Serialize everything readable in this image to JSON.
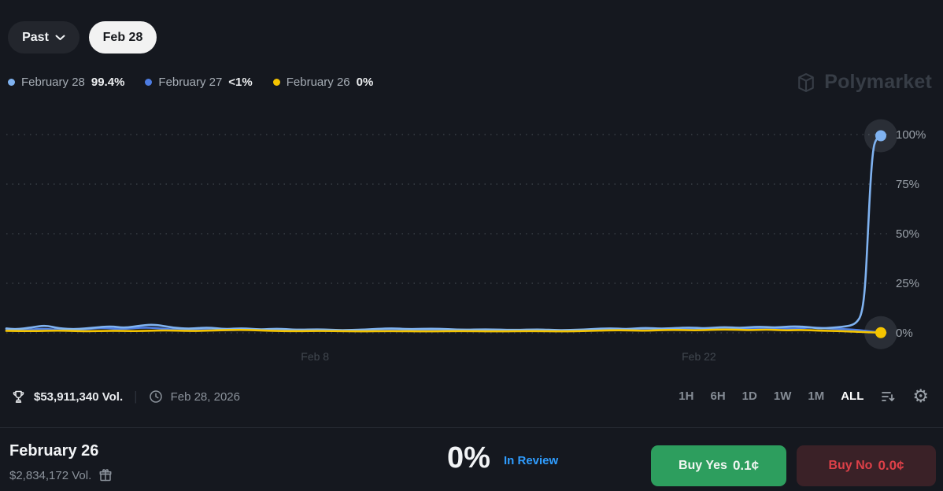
{
  "toolbar": {
    "past_label": "Past",
    "date_pill": "Feb 28"
  },
  "legend": [
    {
      "label": "February 28",
      "value": "99.4%",
      "color": "#7fb2f0"
    },
    {
      "label": "February 27",
      "value": "<1%",
      "color": "#4d7ce2"
    },
    {
      "label": "February 26",
      "value": "0%",
      "color": "#f5c400"
    }
  ],
  "watermark": {
    "text": "Polymarket"
  },
  "chart_data": {
    "type": "line",
    "title": "",
    "ylabel": "",
    "xlabel": "",
    "ylim": [
      0,
      100
    ],
    "grid": "dotted-horizontal",
    "legend_position": "top-left",
    "y_ticks": [
      "0%",
      "25%",
      "50%",
      "75%",
      "100%"
    ],
    "x_ticks": [
      {
        "label": "Feb 8",
        "x": 0.353
      },
      {
        "label": "Feb 22",
        "x": 0.792
      }
    ],
    "series": [
      {
        "name": "February 27",
        "color": "#4d7ce2",
        "end_dot": false,
        "final_value": "<1%",
        "points": [
          [
            0,
            1.6
          ],
          [
            0.02,
            1.2
          ],
          [
            0.04,
            2.2
          ],
          [
            0.06,
            1.4
          ],
          [
            0.09,
            1.8
          ],
          [
            0.11,
            2.6
          ],
          [
            0.13,
            1.8
          ],
          [
            0.16,
            2.8
          ],
          [
            0.18,
            2.0
          ],
          [
            0.2,
            1.4
          ],
          [
            0.22,
            2.0
          ],
          [
            0.25,
            1.2
          ],
          [
            0.28,
            1.8
          ],
          [
            0.31,
            1.3
          ],
          [
            0.34,
            1.6
          ],
          [
            0.37,
            1.1
          ],
          [
            0.4,
            1.4
          ],
          [
            0.43,
            1.8
          ],
          [
            0.46,
            1.2
          ],
          [
            0.5,
            1.5
          ],
          [
            0.54,
            1.1
          ],
          [
            0.58,
            1.4
          ],
          [
            0.62,
            1.0
          ],
          [
            0.66,
            1.3
          ],
          [
            0.7,
            1.8
          ],
          [
            0.73,
            1.4
          ],
          [
            0.76,
            2.2
          ],
          [
            0.79,
            1.6
          ],
          [
            0.82,
            2.4
          ],
          [
            0.85,
            1.8
          ],
          [
            0.88,
            2.6
          ],
          [
            0.9,
            2.0
          ],
          [
            0.92,
            2.8
          ],
          [
            0.94,
            2.2
          ],
          [
            0.96,
            1.8
          ],
          [
            0.975,
            1.4
          ],
          [
            0.99,
            0.6
          ],
          [
            1,
            0.2
          ]
        ]
      },
      {
        "name": "February 28",
        "color": "#7fb2f0",
        "end_dot": true,
        "final_value": "99.4%",
        "points": [
          [
            0,
            2.2
          ],
          [
            0.01,
            1.6
          ],
          [
            0.03,
            2.8
          ],
          [
            0.045,
            3.8
          ],
          [
            0.06,
            2.2
          ],
          [
            0.08,
            1.8
          ],
          [
            0.1,
            2.6
          ],
          [
            0.12,
            3.4
          ],
          [
            0.135,
            2.4
          ],
          [
            0.155,
            3.8
          ],
          [
            0.17,
            4.2
          ],
          [
            0.19,
            2.6
          ],
          [
            0.21,
            2.0
          ],
          [
            0.23,
            2.8
          ],
          [
            0.25,
            1.8
          ],
          [
            0.27,
            2.4
          ],
          [
            0.29,
            1.6
          ],
          [
            0.31,
            2.2
          ],
          [
            0.33,
            1.5
          ],
          [
            0.36,
            1.8
          ],
          [
            0.38,
            1.3
          ],
          [
            0.41,
            1.6
          ],
          [
            0.44,
            2.4
          ],
          [
            0.46,
            1.8
          ],
          [
            0.49,
            2.2
          ],
          [
            0.52,
            1.5
          ],
          [
            0.55,
            1.8
          ],
          [
            0.58,
            1.4
          ],
          [
            0.61,
            1.8
          ],
          [
            0.63,
            1.3
          ],
          [
            0.66,
            1.6
          ],
          [
            0.69,
            2.4
          ],
          [
            0.71,
            1.8
          ],
          [
            0.73,
            2.6
          ],
          [
            0.75,
            2.0
          ],
          [
            0.78,
            2.8
          ],
          [
            0.8,
            2.2
          ],
          [
            0.82,
            3.0
          ],
          [
            0.84,
            2.4
          ],
          [
            0.86,
            3.2
          ],
          [
            0.88,
            2.6
          ],
          [
            0.9,
            3.4
          ],
          [
            0.92,
            2.8
          ],
          [
            0.93,
            2.2
          ],
          [
            0.945,
            2.6
          ],
          [
            0.955,
            3.0
          ],
          [
            0.965,
            3.6
          ],
          [
            0.972,
            5.0
          ],
          [
            0.978,
            9
          ],
          [
            0.982,
            22
          ],
          [
            0.985,
            48
          ],
          [
            0.988,
            75
          ],
          [
            0.991,
            92
          ],
          [
            0.994,
            97.5
          ],
          [
            1,
            99.4
          ]
        ]
      },
      {
        "name": "February 26",
        "color": "#f5c400",
        "end_dot": true,
        "final_value": "0%",
        "points": [
          [
            0,
            1.0
          ],
          [
            0.03,
            0.8
          ],
          [
            0.06,
            1.2
          ],
          [
            0.09,
            0.7
          ],
          [
            0.12,
            1.1
          ],
          [
            0.15,
            0.8
          ],
          [
            0.18,
            1.3
          ],
          [
            0.21,
            0.9
          ],
          [
            0.24,
            1.2
          ],
          [
            0.27,
            1.6
          ],
          [
            0.3,
            1.0
          ],
          [
            0.33,
            0.8
          ],
          [
            0.36,
            1.0
          ],
          [
            0.4,
            0.7
          ],
          [
            0.44,
            0.9
          ],
          [
            0.48,
            0.7
          ],
          [
            0.52,
            0.9
          ],
          [
            0.56,
            0.7
          ],
          [
            0.6,
            0.9
          ],
          [
            0.64,
            0.7
          ],
          [
            0.67,
            1.0
          ],
          [
            0.7,
            1.4
          ],
          [
            0.73,
            1.0
          ],
          [
            0.76,
            1.6
          ],
          [
            0.79,
            1.2
          ],
          [
            0.82,
            1.8
          ],
          [
            0.85,
            1.3
          ],
          [
            0.87,
            1.7
          ],
          [
            0.89,
            1.2
          ],
          [
            0.91,
            1.5
          ],
          [
            0.93,
            1.1
          ],
          [
            0.95,
            0.9
          ],
          [
            0.97,
            0.6
          ],
          [
            0.985,
            0.3
          ],
          [
            1,
            0.1
          ]
        ]
      }
    ]
  },
  "stats": {
    "volume": "$53,911,340 Vol.",
    "divider": "|",
    "date": "Feb 28, 2026"
  },
  "range_buttons": [
    {
      "label": "1H"
    },
    {
      "label": "6H"
    },
    {
      "label": "1D"
    },
    {
      "label": "1W"
    },
    {
      "label": "1M"
    },
    {
      "label": "ALL"
    }
  ],
  "icons": {
    "gear": "⚙"
  },
  "market": {
    "title": "February 26",
    "volume": "$2,834,172 Vol.",
    "chance": "0%",
    "status": "In Review",
    "buy_yes_label": "Buy Yes",
    "buy_yes_price": "0.1¢",
    "buy_no_label": "Buy No",
    "buy_no_price": "0.0¢"
  },
  "colors": {
    "status_blue": "#2f9dff",
    "yes_green_bg": "#2d9e5e",
    "no_red_bg": "#3a2127",
    "no_red_text": "#dd4048",
    "halo": "rgba(170,182,200,0.14)"
  }
}
